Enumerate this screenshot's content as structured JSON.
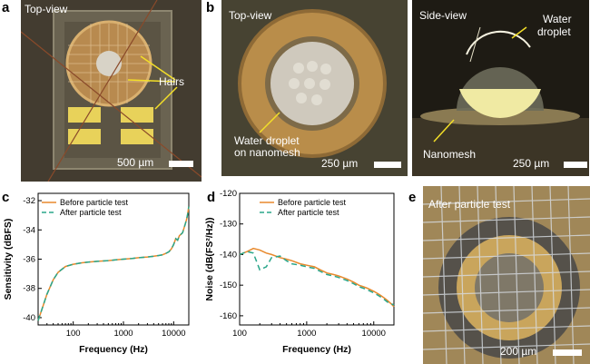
{
  "panels": {
    "a": {
      "label": "a",
      "view": "Top-view",
      "hairs": "Hairs",
      "scale": "500 µm"
    },
    "b": {
      "label": "b",
      "view_left": "Top-view",
      "water_on_mesh_1": "Water droplet",
      "water_on_mesh_2": "on nanomesh",
      "scale_left": "250 µm",
      "view_right": "Side-view",
      "water_droplet_1": "Water",
      "water_droplet_2": "droplet",
      "nanomesh": "Nanomesh",
      "scale_right": "250 µm"
    },
    "c": {
      "label": "c"
    },
    "d": {
      "label": "d"
    },
    "e": {
      "label": "e",
      "title": "After particle test",
      "scale": "200 µm"
    }
  },
  "colors": {
    "before": "#e8892c",
    "after": "#2aa68a"
  },
  "chart_data": [
    {
      "id": "c",
      "type": "line",
      "xlabel": "Frequency (Hz)",
      "ylabel": "Sensitivity (dBFS)",
      "xscale": "log",
      "xlim": [
        20,
        20000
      ],
      "ylim": [
        -40.5,
        -31.5
      ],
      "xticks": [
        {
          "v": 100,
          "label": "100"
        },
        {
          "v": 1000,
          "label": "1000"
        },
        {
          "v": 10000,
          "label": "10000"
        }
      ],
      "yticks": [
        {
          "v": -32,
          "label": "-32"
        },
        {
          "v": -34,
          "label": "-34"
        },
        {
          "v": -36,
          "label": "-36"
        },
        {
          "v": -38,
          "label": "-38"
        },
        {
          "v": -40,
          "label": "-40"
        }
      ],
      "legend": [
        "Before particle test",
        "After particle test"
      ],
      "legend_position": "top-left",
      "series": [
        {
          "name": "Before particle test",
          "style": "solid",
          "x": [
            20,
            25,
            30,
            40,
            50,
            70,
            100,
            150,
            200,
            300,
            500,
            700,
            1000,
            1500,
            2000,
            3000,
            4000,
            5000,
            6000,
            7000,
            8000,
            9000,
            10000,
            11000,
            12000,
            13000,
            14000,
            15000,
            16000,
            17000,
            18000,
            19000,
            20000
          ],
          "y": [
            -40.2,
            -39.2,
            -38.4,
            -37.4,
            -36.9,
            -36.5,
            -36.35,
            -36.25,
            -36.2,
            -36.15,
            -36.1,
            -36.05,
            -36.0,
            -35.95,
            -35.9,
            -35.85,
            -35.8,
            -35.75,
            -35.7,
            -35.6,
            -35.5,
            -35.3,
            -35.0,
            -34.6,
            -34.7,
            -34.4,
            -34.3,
            -34.2,
            -33.9,
            -33.6,
            -33.3,
            -32.9,
            -32.4
          ]
        },
        {
          "name": "After particle test",
          "style": "dashed",
          "x": [
            20,
            25,
            30,
            40,
            50,
            70,
            100,
            150,
            200,
            300,
            500,
            700,
            1000,
            1500,
            2000,
            3000,
            4000,
            5000,
            6000,
            7000,
            8000,
            9000,
            10000,
            11000,
            12000,
            13000,
            14000,
            15000,
            16000,
            17000,
            18000,
            19000,
            20000
          ],
          "y": [
            -40.2,
            -39.2,
            -38.4,
            -37.4,
            -36.9,
            -36.5,
            -36.35,
            -36.25,
            -36.2,
            -36.15,
            -36.1,
            -36.05,
            -36.0,
            -35.95,
            -35.9,
            -35.85,
            -35.8,
            -35.75,
            -35.7,
            -35.6,
            -35.5,
            -35.3,
            -35.0,
            -34.6,
            -34.7,
            -34.4,
            -34.3,
            -34.2,
            -33.9,
            -33.6,
            -33.3,
            -32.9,
            -32.4
          ]
        }
      ]
    },
    {
      "id": "d",
      "type": "line",
      "xlabel": "Frequency (Hz)",
      "ylabel": "Noise (dB(FS²/Hz))",
      "xscale": "log",
      "xlim": [
        100,
        20000
      ],
      "ylim": [
        -163,
        -120
      ],
      "xticks": [
        {
          "v": 100,
          "label": "100"
        },
        {
          "v": 1000,
          "label": "1000"
        },
        {
          "v": 10000,
          "label": "10000"
        }
      ],
      "yticks": [
        {
          "v": -120,
          "label": "-120"
        },
        {
          "v": -130,
          "label": "-130"
        },
        {
          "v": -140,
          "label": "-140"
        },
        {
          "v": -150,
          "label": "-150"
        },
        {
          "v": -160,
          "label": "-160"
        }
      ],
      "legend": [
        "Before particle test",
        "After particle test"
      ],
      "legend_position": "top-right",
      "series": [
        {
          "name": "Before particle test",
          "style": "solid",
          "x": [
            100,
            130,
            160,
            200,
            250,
            300,
            400,
            500,
            600,
            800,
            1000,
            1300,
            1600,
            2000,
            2500,
            3000,
            4000,
            5000,
            6000,
            7000,
            8000,
            10000,
            12000,
            14000,
            16000,
            18000,
            20000
          ],
          "y": [
            -140,
            -139,
            -138,
            -138.5,
            -139.5,
            -140,
            -141,
            -141.5,
            -142,
            -143,
            -143.5,
            -144,
            -145,
            -146,
            -146.5,
            -147,
            -148,
            -149,
            -150,
            -150.5,
            -151,
            -152,
            -153,
            -154,
            -155,
            -156,
            -157
          ]
        },
        {
          "name": "After particle test",
          "style": "dashed",
          "x": [
            100,
            130,
            160,
            200,
            250,
            300,
            400,
            500,
            600,
            800,
            1000,
            1300,
            1600,
            2000,
            2500,
            3000,
            4000,
            5000,
            6000,
            7000,
            8000,
            10000,
            12000,
            14000,
            16000,
            18000,
            20000
          ],
          "y": [
            -140,
            -139,
            -139.5,
            -145,
            -144,
            -141,
            -140.5,
            -142,
            -143,
            -143.5,
            -144,
            -144.5,
            -145.5,
            -146.5,
            -147,
            -147.5,
            -148.5,
            -149.5,
            -150.5,
            -151,
            -151.5,
            -152.5,
            -153.5,
            -154.5,
            -155.5,
            -156,
            -156.5
          ]
        }
      ]
    }
  ]
}
